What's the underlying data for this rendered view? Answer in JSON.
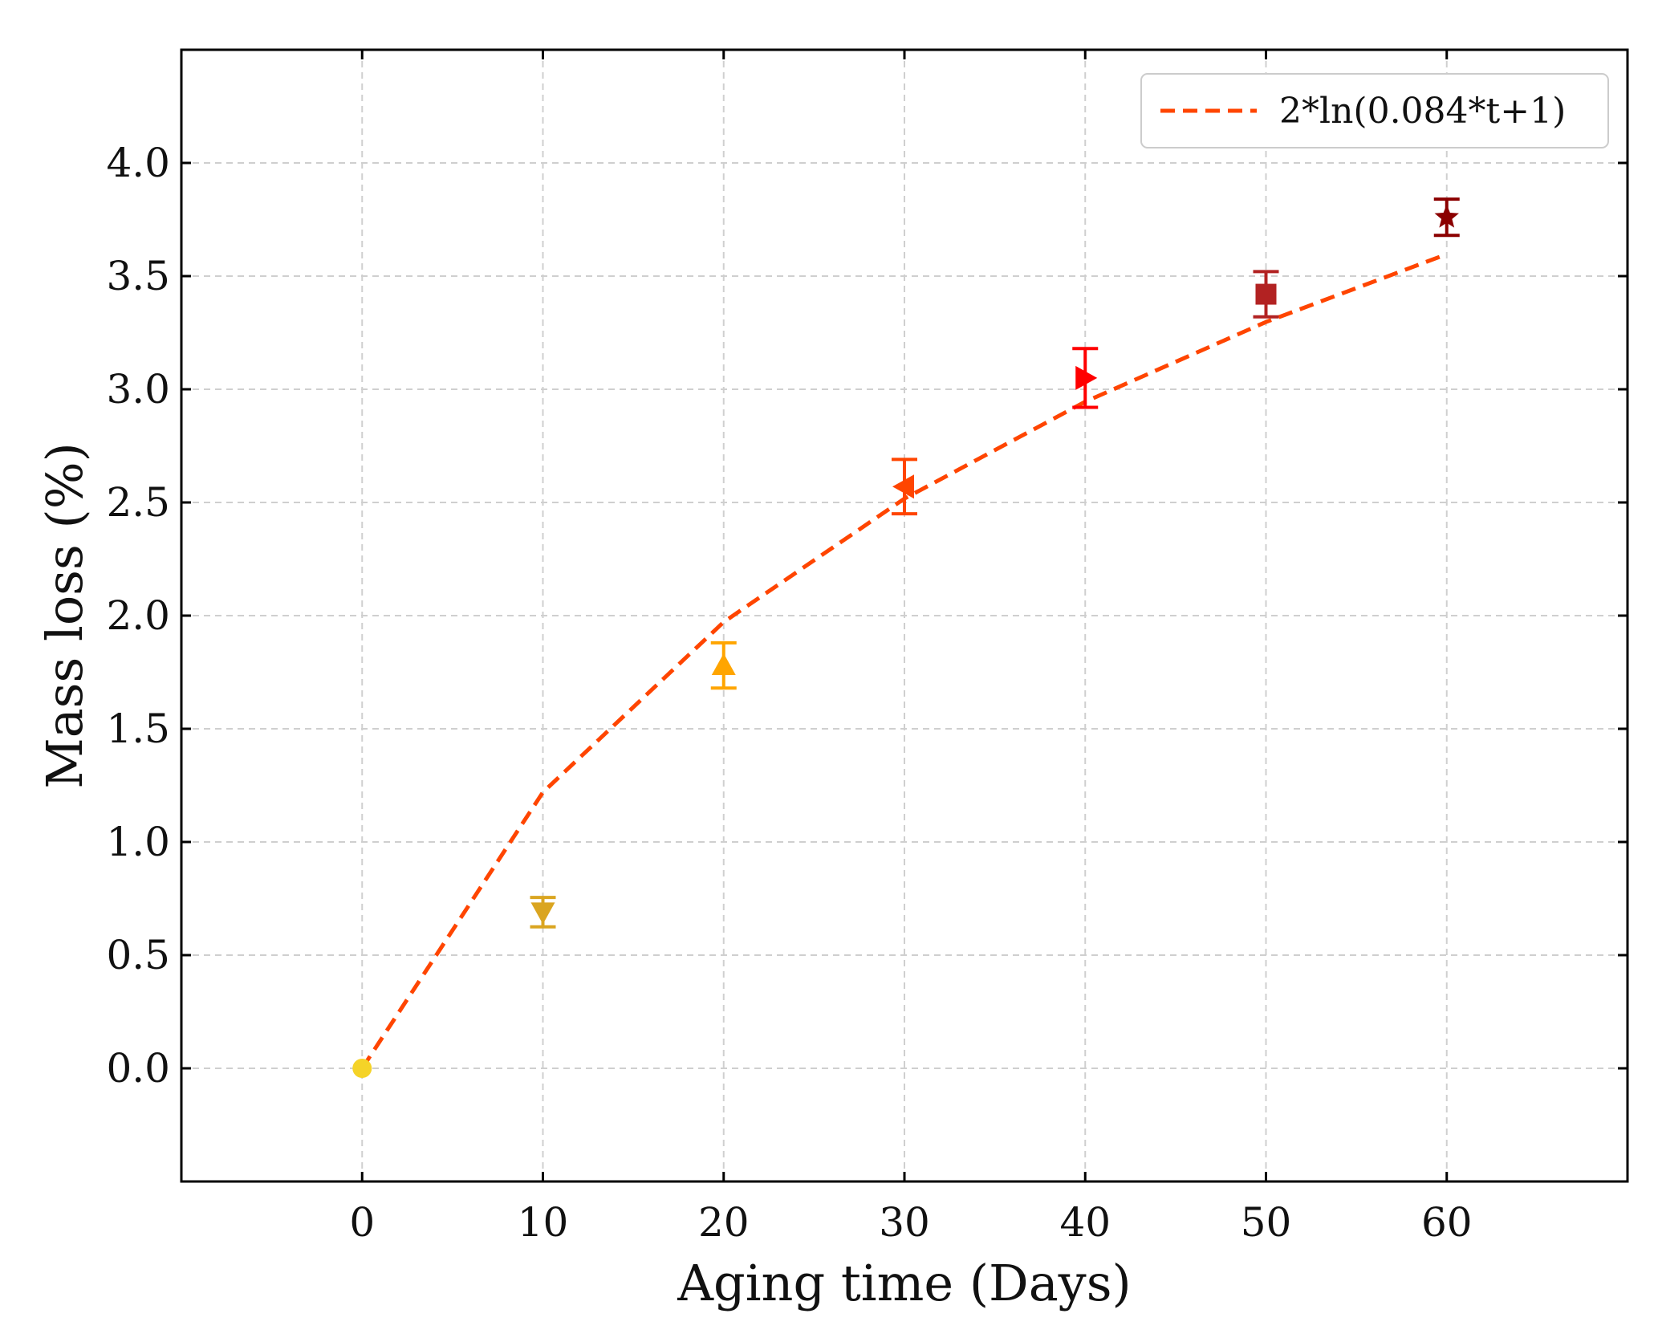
{
  "chart_data": {
    "type": "scatter",
    "title": "",
    "xlabel": "Aging time (Days)",
    "ylabel": "Mass loss (%)",
    "xlim": [
      -10,
      70
    ],
    "ylim": [
      -0.5,
      4.5
    ],
    "x_ticks": [
      0,
      10,
      20,
      30,
      40,
      50,
      60
    ],
    "y_ticks": [
      0.0,
      0.5,
      1.0,
      1.5,
      2.0,
      2.5,
      3.0,
      3.5,
      4.0
    ],
    "x_tick_labels": [
      "0",
      "10",
      "20",
      "30",
      "40",
      "50",
      "60"
    ],
    "y_tick_labels": [
      "0.0",
      "0.5",
      "1.0",
      "1.5",
      "2.0",
      "2.5",
      "3.0",
      "3.5",
      "4.0"
    ],
    "grid": true,
    "legend_position": "top-right",
    "points": [
      {
        "x": 0,
        "y": 0.0,
        "err": 0.0,
        "marker": "circle",
        "color": "#F5D328"
      },
      {
        "x": 10,
        "y": 0.69,
        "err": 0.065,
        "marker": "triangle-down",
        "color": "#DAA520"
      },
      {
        "x": 20,
        "y": 1.78,
        "err": 0.1,
        "marker": "triangle-up",
        "color": "#FFA500"
      },
      {
        "x": 30,
        "y": 2.57,
        "err": 0.12,
        "marker": "triangle-left",
        "color": "#FF4500"
      },
      {
        "x": 40,
        "y": 3.05,
        "err": 0.13,
        "marker": "triangle-right",
        "color": "#FF0000"
      },
      {
        "x": 50,
        "y": 3.42,
        "err": 0.1,
        "marker": "square",
        "color": "#B22222"
      },
      {
        "x": 60,
        "y": 3.76,
        "err": 0.08,
        "marker": "star",
        "color": "#8B0000"
      }
    ],
    "fit": {
      "label": "2*ln(0.084*t+1)",
      "a": 2,
      "b": 0.084,
      "x": [
        0,
        10,
        20,
        30,
        40,
        50,
        60
      ],
      "color": "#FF4500",
      "style": "dashed"
    }
  }
}
